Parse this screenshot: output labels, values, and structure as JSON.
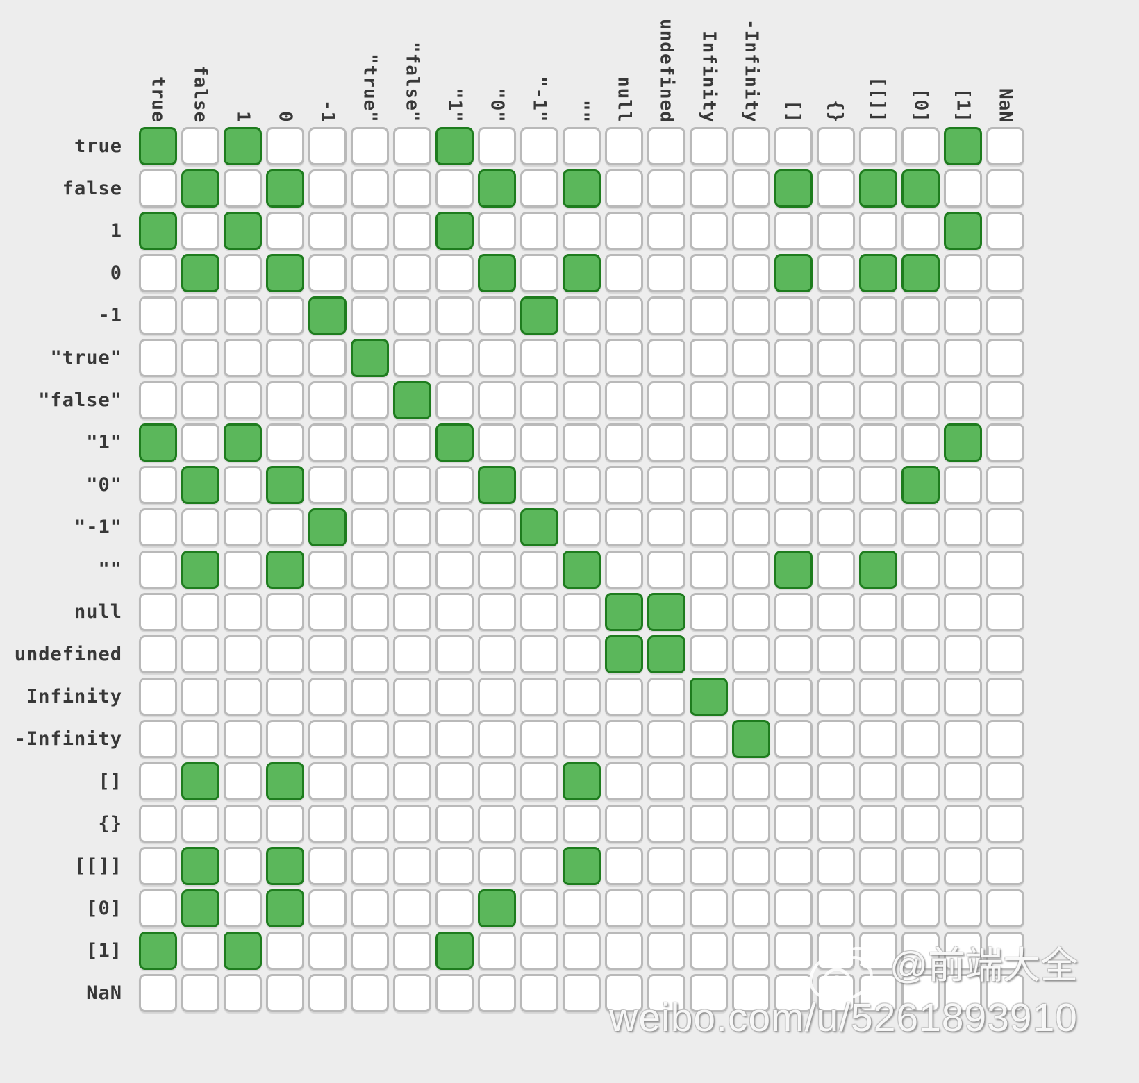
{
  "colors": {
    "background": "#ededed",
    "equal_cell_fill": "#5bb75b",
    "equal_cell_border": "#1e7c1e",
    "not_equal_cell_fill": "#ffffff",
    "not_equal_cell_border": "#b9b9b9",
    "label_color": "#383838",
    "watermark_color": "#ffffff"
  },
  "watermark": {
    "logo": "weibo-logo",
    "handle": "@前端大全",
    "url": "weibo.com/u/5261893910"
  },
  "chart_data": {
    "type": "heatmap",
    "title": "",
    "legend_position": "none",
    "grid": true,
    "row_labels": [
      "true",
      "false",
      "1",
      "0",
      "-1",
      "\"true\"",
      "\"false\"",
      "\"1\"",
      "\"0\"",
      "\"-1\"",
      "\"\"",
      "null",
      "undefined",
      "Infinity",
      "-Infinity",
      "[]",
      "{}",
      "[[]]",
      "[0]",
      "[1]",
      "NaN"
    ],
    "col_labels": [
      "true",
      "false",
      "1",
      "0",
      "-1",
      "\"true\"",
      "\"false\"",
      "\"1\"",
      "\"0\"",
      "\"-1\"",
      "\"\"",
      "null",
      "undefined",
      "Infinity",
      "-Infinity",
      "[]",
      "{}",
      "[[]]",
      "[0]",
      "[1]",
      "NaN"
    ],
    "matrix": [
      [
        1,
        0,
        1,
        0,
        0,
        0,
        0,
        1,
        0,
        0,
        0,
        0,
        0,
        0,
        0,
        0,
        0,
        0,
        0,
        1,
        0
      ],
      [
        0,
        1,
        0,
        1,
        0,
        0,
        0,
        0,
        1,
        0,
        1,
        0,
        0,
        0,
        0,
        1,
        0,
        1,
        1,
        0,
        0
      ],
      [
        1,
        0,
        1,
        0,
        0,
        0,
        0,
        1,
        0,
        0,
        0,
        0,
        0,
        0,
        0,
        0,
        0,
        0,
        0,
        1,
        0
      ],
      [
        0,
        1,
        0,
        1,
        0,
        0,
        0,
        0,
        1,
        0,
        1,
        0,
        0,
        0,
        0,
        1,
        0,
        1,
        1,
        0,
        0
      ],
      [
        0,
        0,
        0,
        0,
        1,
        0,
        0,
        0,
        0,
        1,
        0,
        0,
        0,
        0,
        0,
        0,
        0,
        0,
        0,
        0,
        0
      ],
      [
        0,
        0,
        0,
        0,
        0,
        1,
        0,
        0,
        0,
        0,
        0,
        0,
        0,
        0,
        0,
        0,
        0,
        0,
        0,
        0,
        0
      ],
      [
        0,
        0,
        0,
        0,
        0,
        0,
        1,
        0,
        0,
        0,
        0,
        0,
        0,
        0,
        0,
        0,
        0,
        0,
        0,
        0,
        0
      ],
      [
        1,
        0,
        1,
        0,
        0,
        0,
        0,
        1,
        0,
        0,
        0,
        0,
        0,
        0,
        0,
        0,
        0,
        0,
        0,
        1,
        0
      ],
      [
        0,
        1,
        0,
        1,
        0,
        0,
        0,
        0,
        1,
        0,
        0,
        0,
        0,
        0,
        0,
        0,
        0,
        0,
        1,
        0,
        0
      ],
      [
        0,
        0,
        0,
        0,
        1,
        0,
        0,
        0,
        0,
        1,
        0,
        0,
        0,
        0,
        0,
        0,
        0,
        0,
        0,
        0,
        0
      ],
      [
        0,
        1,
        0,
        1,
        0,
        0,
        0,
        0,
        0,
        0,
        1,
        0,
        0,
        0,
        0,
        1,
        0,
        1,
        0,
        0,
        0
      ],
      [
        0,
        0,
        0,
        0,
        0,
        0,
        0,
        0,
        0,
        0,
        0,
        1,
        1,
        0,
        0,
        0,
        0,
        0,
        0,
        0,
        0
      ],
      [
        0,
        0,
        0,
        0,
        0,
        0,
        0,
        0,
        0,
        0,
        0,
        1,
        1,
        0,
        0,
        0,
        0,
        0,
        0,
        0,
        0
      ],
      [
        0,
        0,
        0,
        0,
        0,
        0,
        0,
        0,
        0,
        0,
        0,
        0,
        0,
        1,
        0,
        0,
        0,
        0,
        0,
        0,
        0
      ],
      [
        0,
        0,
        0,
        0,
        0,
        0,
        0,
        0,
        0,
        0,
        0,
        0,
        0,
        0,
        1,
        0,
        0,
        0,
        0,
        0,
        0
      ],
      [
        0,
        1,
        0,
        1,
        0,
        0,
        0,
        0,
        0,
        0,
        1,
        0,
        0,
        0,
        0,
        0,
        0,
        0,
        0,
        0,
        0
      ],
      [
        0,
        0,
        0,
        0,
        0,
        0,
        0,
        0,
        0,
        0,
        0,
        0,
        0,
        0,
        0,
        0,
        0,
        0,
        0,
        0,
        0
      ],
      [
        0,
        1,
        0,
        1,
        0,
        0,
        0,
        0,
        0,
        0,
        1,
        0,
        0,
        0,
        0,
        0,
        0,
        0,
        0,
        0,
        0
      ],
      [
        0,
        1,
        0,
        1,
        0,
        0,
        0,
        0,
        1,
        0,
        0,
        0,
        0,
        0,
        0,
        0,
        0,
        0,
        0,
        0,
        0
      ],
      [
        1,
        0,
        1,
        0,
        0,
        0,
        0,
        1,
        0,
        0,
        0,
        0,
        0,
        0,
        0,
        0,
        0,
        0,
        0,
        0,
        0
      ],
      [
        0,
        0,
        0,
        0,
        0,
        0,
        0,
        0,
        0,
        0,
        0,
        0,
        0,
        0,
        0,
        0,
        0,
        0,
        0,
        0,
        0
      ]
    ]
  }
}
